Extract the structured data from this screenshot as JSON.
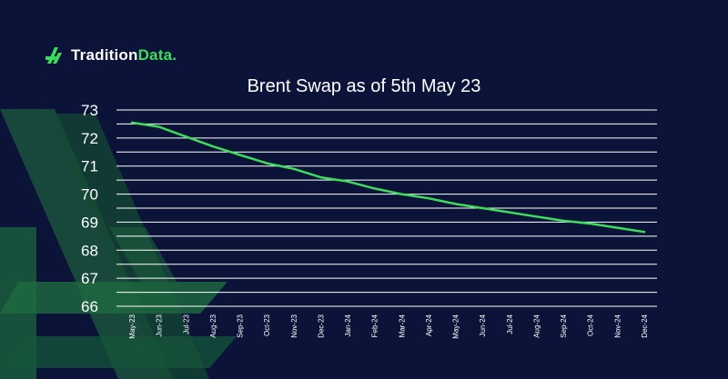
{
  "logo": {
    "text_main": "Tradition",
    "text_accent": "Data."
  },
  "colors": {
    "background": "#0b1438",
    "line": "#3ddc5c",
    "grid": "#ffffff",
    "accent": "#3ddc5c",
    "decoration": "#1c5a3c"
  },
  "chart_data": {
    "type": "line",
    "title": "Brent Swap as of 5th May 23",
    "xlabel": "",
    "ylabel": "",
    "categories": [
      "May-23",
      "Jun-23",
      "Jul-23",
      "Aug-23",
      "Sep-23",
      "Oct-23",
      "Nov-23",
      "Dec-23",
      "Jan-24",
      "Feb-24",
      "Mar-24",
      "Apr-24",
      "May-24",
      "Jun-24",
      "Jul-24",
      "Aug-24",
      "Sep-24",
      "Oct-24",
      "Nov-24",
      "Dec-24"
    ],
    "values": [
      72.55,
      72.4,
      72.05,
      71.7,
      71.4,
      71.1,
      70.9,
      70.6,
      70.45,
      70.2,
      70.0,
      69.85,
      69.65,
      69.5,
      69.35,
      69.2,
      69.05,
      68.95,
      68.8,
      68.65
    ],
    "ylim": [
      66,
      73
    ],
    "yticks": [
      66,
      67,
      68,
      69,
      70,
      71,
      72,
      73
    ],
    "grid": true,
    "legend": "none"
  }
}
